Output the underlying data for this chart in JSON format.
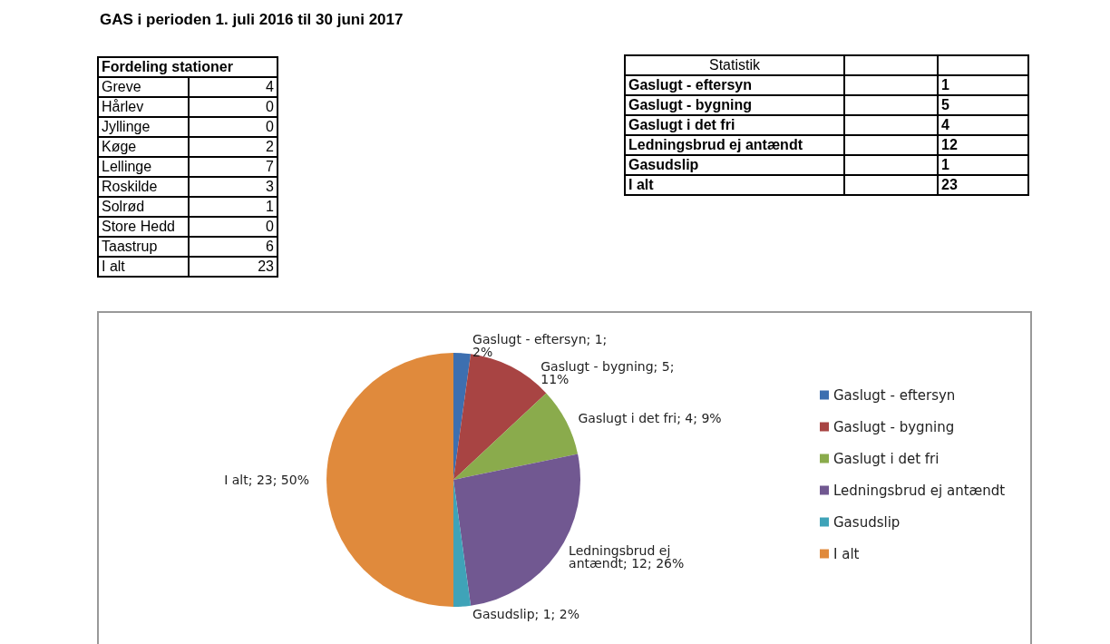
{
  "chart_data": [
    {
      "type": "other",
      "title": "GAS i perioden 1. juli 2016 til 30 juni 2017",
      "subtitle": "Fordeling stationer",
      "categories": [
        "Greve",
        "Hårlev",
        "Jyllinge",
        "Køge",
        "Lellinge",
        "Roskilde",
        "Solrød",
        "Store Hedd",
        "Taastrup",
        "I alt"
      ],
      "values": [
        4,
        0,
        0,
        2,
        7,
        3,
        1,
        0,
        6,
        23
      ],
      "data_labels": true
    },
    {
      "type": "other",
      "title": "Statistik",
      "categories": [
        "Gaslugt - eftersyn",
        "Gaslugt - bygning",
        "Gaslugt i det fri",
        "Ledningsbrud ej antændt",
        "Gasudslip",
        "I alt"
      ],
      "values": [
        1,
        5,
        4,
        12,
        1,
        23
      ],
      "data_labels": true
    },
    {
      "type": "pie",
      "categories": [
        "Gaslugt - eftersyn",
        "Gaslugt - bygning",
        "Gaslugt i det fri",
        "Ledningsbrud ej antændt",
        "Gasudslip",
        "I alt"
      ],
      "values": [
        1,
        5,
        4,
        12,
        1,
        23
      ],
      "value_labels": [
        "Gaslugt - eftersyn; 1; 2%",
        "Gaslugt - bygning; 5; 11%",
        "Gaslugt i det fri; 4; 9%",
        "Ledningsbrud ej antændt; 12; 26%",
        "Gasudslip; 1; 2%",
        "I alt; 23; 50%"
      ],
      "colors": [
        "#3d6fb0",
        "#a84443",
        "#8aab4c",
        "#715891",
        "#3fa3b8",
        "#e08a3c"
      ],
      "legend": "right"
    }
  ]
}
